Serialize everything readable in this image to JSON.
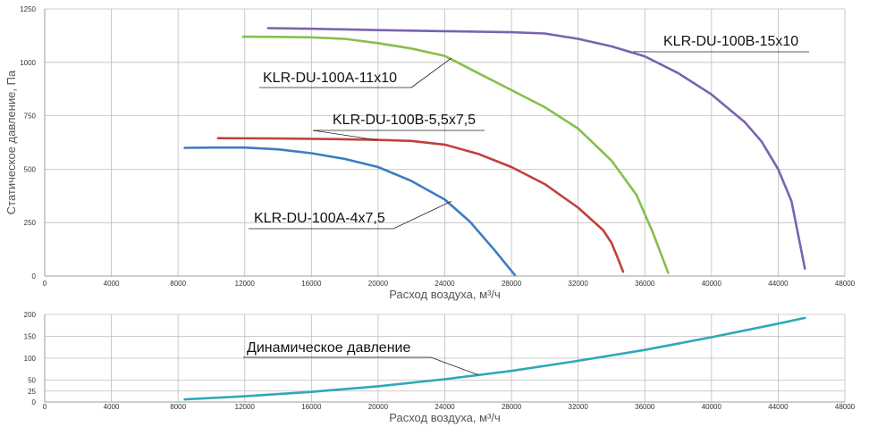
{
  "chart_data": [
    {
      "type": "line",
      "xlabel": "Расход воздуха, м³/ч",
      "ylabel": "Статическое давление, Па",
      "xlim": [
        0,
        48000
      ],
      "ylim": [
        0,
        1250
      ],
      "grid": true,
      "xticks": [
        "0",
        "4000",
        "8000",
        "12000",
        "16000",
        "20000",
        "24000",
        "28000",
        "32000",
        "36000",
        "40000",
        "44000",
        "48000"
      ],
      "yticks": [
        "0",
        "250",
        "500",
        "750",
        "1000",
        "1250"
      ],
      "series": [
        {
          "name": "KLR-DU-100A-4x7,5",
          "color": "#3d7cc4",
          "x": [
            8400,
            10000,
            12000,
            14000,
            16000,
            18000,
            20000,
            22000,
            24000,
            25500,
            27000,
            28200
          ],
          "y": [
            600,
            601,
            601,
            593,
            575,
            548,
            510,
            445,
            358,
            255,
            120,
            5
          ]
        },
        {
          "name": "KLR-DU-100B-5,5x7,5",
          "color": "#c0413d",
          "x": [
            10400,
            14000,
            18000,
            20000,
            22000,
            24000,
            26000,
            28000,
            30000,
            32000,
            33500,
            34000,
            34400,
            34700
          ],
          "y": [
            645,
            644,
            640,
            637,
            632,
            615,
            572,
            510,
            430,
            320,
            215,
            155,
            80,
            20
          ]
        },
        {
          "name": "KLR-DU-100A-11x10",
          "color": "#86bf4c",
          "x": [
            11900,
            14000,
            16000,
            18000,
            20000,
            22000,
            24000,
            26000,
            28000,
            30000,
            32000,
            34000,
            35500,
            36500,
            37400
          ],
          "y": [
            1120,
            1119,
            1117,
            1110,
            1090,
            1065,
            1030,
            950,
            870,
            790,
            690,
            540,
            380,
            200,
            15
          ]
        },
        {
          "name": "KLR-DU-100B-15x10",
          "color": "#7b62b0",
          "x": [
            13400,
            16000,
            20000,
            24000,
            28000,
            30000,
            32000,
            34000,
            36000,
            38000,
            40000,
            42000,
            43000,
            44000,
            44800,
            45600
          ],
          "y": [
            1160,
            1157,
            1151,
            1146,
            1141,
            1135,
            1110,
            1075,
            1028,
            950,
            850,
            720,
            630,
            500,
            350,
            35
          ]
        }
      ]
    },
    {
      "type": "line",
      "xlabel": "Расход воздуха, м³/ч",
      "ylabel": "",
      "xlim": [
        0,
        48000
      ],
      "ylim": [
        0,
        200
      ],
      "grid": true,
      "xticks": [
        "0",
        "4000",
        "8000",
        "12000",
        "16000",
        "20000",
        "24000",
        "28000",
        "32000",
        "36000",
        "40000",
        "44000",
        "48000"
      ],
      "yticks": [
        "0",
        "25",
        "50",
        "100",
        "150",
        "200"
      ],
      "series": [
        {
          "name": "Динамическое давление",
          "color": "#2fa9b8",
          "x": [
            8400,
            12000,
            16000,
            20000,
            24000,
            28000,
            32000,
            36000,
            40000,
            44000,
            45600
          ],
          "y": [
            6,
            13,
            23,
            36,
            52,
            71,
            94,
            119,
            148,
            179,
            192
          ]
        }
      ]
    }
  ]
}
